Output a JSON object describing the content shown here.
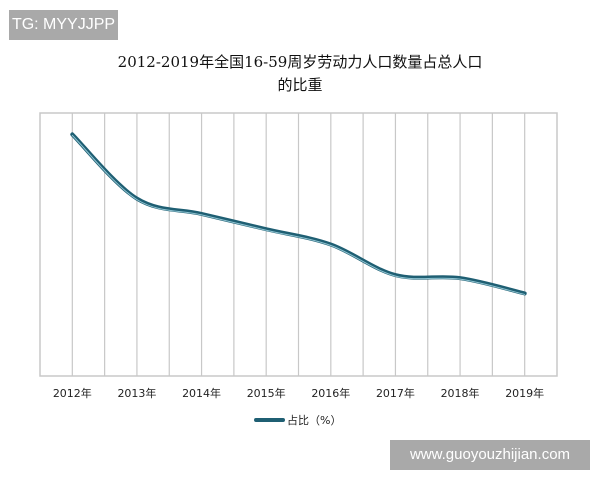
{
  "watermarks": {
    "top_left": "TG: MYYJJPP",
    "bottom_right": "www.guoyouzhijian.com"
  },
  "chart_data": {
    "type": "line",
    "title_line1": "2012-2019年全国16-59周岁劳动力人口数量占总人口",
    "title_line2": "的比重",
    "categories": [
      "2012年",
      "2013年",
      "2014年",
      "2015年",
      "2016年",
      "2017年",
      "2018年",
      "2019年"
    ],
    "series": [
      {
        "name": "占比（%）",
        "values": [
          69.2,
          67.1,
          66.6,
          66.1,
          65.6,
          64.6,
          64.5,
          64.0
        ]
      }
    ],
    "ylim": [
      61.3,
      69.9
    ],
    "grid": "vertical",
    "legend": "bottom",
    "smooth": true,
    "colors": {
      "line": "#1f5f73",
      "line_highlight": "#8fc4d2",
      "grid": "#c8c8c8"
    }
  }
}
